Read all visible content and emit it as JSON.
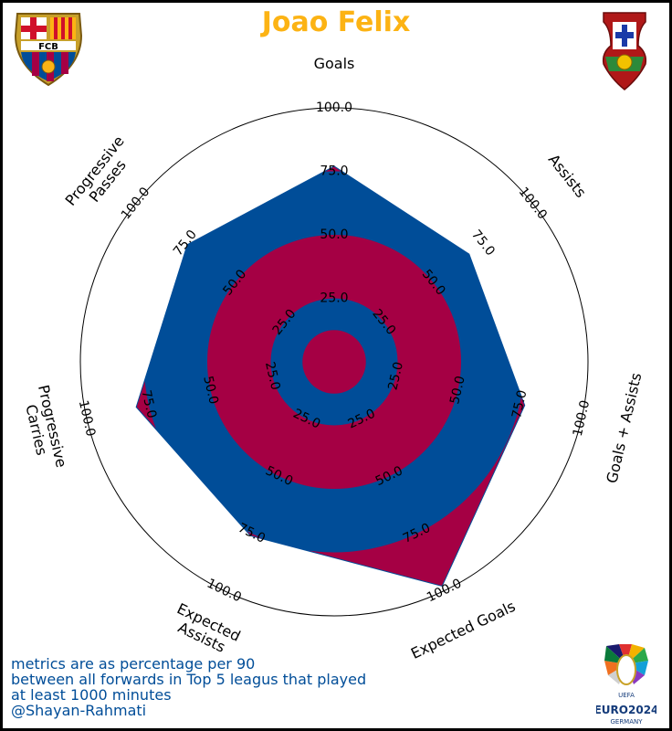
{
  "title": "Joao Felix",
  "colors": {
    "title": "#FCB314",
    "blue": "#004D98",
    "garnet": "#A50044",
    "note": "#004D98"
  },
  "logos": {
    "club": {
      "icon": "fc-barcelona-crest-icon",
      "text": "FCB"
    },
    "country": {
      "icon": "portugal-federation-crest-icon"
    },
    "tournament": {
      "icon": "euro-2024-logo-icon",
      "text": "EURO2024",
      "subtext": "GERMANY",
      "small": "UEFA"
    }
  },
  "footnote": {
    "line1": "metrics are as percentage per 90",
    "line2": "between all forwards in Top 5 leagus that played",
    "line3": "at least 1000 minutes",
    "line4": "@Shayan-Rahmati"
  },
  "chart_data": {
    "type": "radar",
    "categories": [
      "Goals",
      "Assists",
      "Goals + Assists",
      "Expected Goals",
      "Expected Assists",
      "Progressive Carries",
      "Progressive Passes"
    ],
    "category_labels": [
      "Goals",
      "Assists",
      "Goals + Assists",
      "Expected Goals",
      "Expected\nAssists",
      "Progressive\nCarries",
      "Progressive\nPasses"
    ],
    "values": [
      77,
      68,
      77,
      98,
      76,
      80,
      74
    ],
    "rlim": [
      0,
      100
    ],
    "rings": [
      25.0,
      50.0,
      75.0,
      100.0
    ],
    "tick_labels": [
      "25.0",
      "50.0",
      "75.0",
      "100.0"
    ],
    "max_label": "100.0",
    "grid": true
  }
}
